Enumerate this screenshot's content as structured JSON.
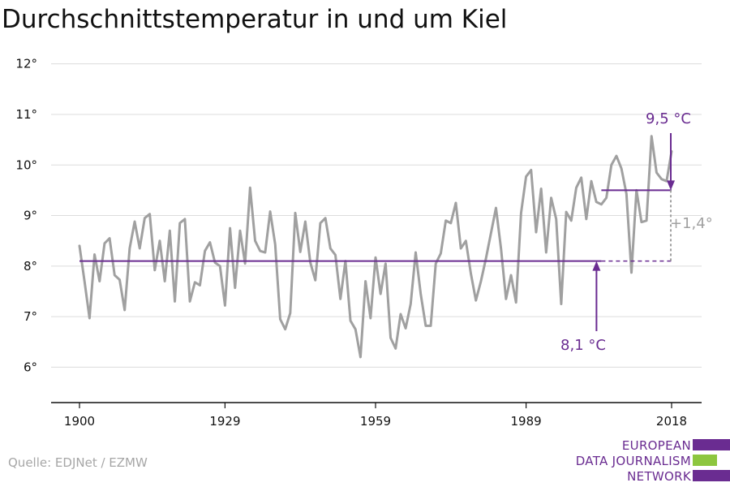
{
  "title": "Durchschnittstemperatur in und um Kiel",
  "source": "Quelle: EDJNet / EZMW",
  "logo": {
    "lines": [
      "EUROPEAN",
      "DATA JOURNALISM",
      "NETWORK"
    ],
    "colors": [
      "#6a2c91",
      "#8dc63f",
      "#6a2c91"
    ]
  },
  "colors": {
    "series": "#a0a0a0",
    "mean": "#6a2c91",
    "diff": "#a0a0a0"
  },
  "chart_data": {
    "type": "line",
    "title": "Durchschnittstemperatur in und um Kiel",
    "ylim": [
      5.3,
      12.3
    ],
    "xlim": [
      1900,
      2018
    ],
    "yticks": [
      6,
      7,
      8,
      9,
      10,
      11,
      12
    ],
    "ytick_labels": [
      "6°",
      "7°",
      "8°",
      "9°",
      "10°",
      "11°",
      "12°"
    ],
    "xticks": [
      1900,
      1929,
      1959,
      1989,
      2018
    ],
    "grid": true,
    "x": [
      1900,
      1901,
      1902,
      1903,
      1904,
      1905,
      1906,
      1907,
      1908,
      1909,
      1910,
      1911,
      1912,
      1913,
      1914,
      1915,
      1916,
      1917,
      1918,
      1919,
      1920,
      1921,
      1922,
      1923,
      1924,
      1925,
      1926,
      1927,
      1928,
      1929,
      1930,
      1931,
      1932,
      1933,
      1934,
      1935,
      1936,
      1937,
      1938,
      1939,
      1940,
      1941,
      1942,
      1943,
      1944,
      1945,
      1946,
      1947,
      1948,
      1949,
      1950,
      1951,
      1952,
      1953,
      1954,
      1955,
      1956,
      1957,
      1958,
      1959,
      1960,
      1961,
      1962,
      1963,
      1964,
      1965,
      1966,
      1967,
      1968,
      1969,
      1970,
      1971,
      1972,
      1973,
      1974,
      1975,
      1976,
      1977,
      1978,
      1979,
      1980,
      1981,
      1982,
      1983,
      1984,
      1985,
      1986,
      1987,
      1988,
      1989,
      1990,
      1991,
      1992,
      1993,
      1994,
      1995,
      1996,
      1997,
      1998,
      1999,
      2000,
      2001,
      2002,
      2003,
      2004,
      2005,
      2006,
      2007,
      2008,
      2009,
      2010,
      2011,
      2012,
      2013,
      2014,
      2015,
      2016,
      2017,
      2018
    ],
    "series": [
      {
        "values": [
          8.4,
          7.7,
          6.97,
          8.23,
          7.7,
          8.45,
          8.55,
          7.82,
          7.73,
          7.13,
          8.35,
          8.88,
          8.35,
          8.95,
          9.03,
          7.92,
          8.5,
          7.7,
          8.7,
          7.3,
          8.85,
          8.93,
          7.3,
          7.68,
          7.62,
          8.3,
          8.47,
          8.07,
          8.0,
          7.22,
          8.75,
          7.57,
          8.7,
          8.05,
          9.55,
          8.5,
          8.3,
          8.27,
          9.08,
          8.43,
          6.95,
          6.75,
          7.07,
          9.05,
          8.28,
          8.88,
          8.07,
          7.72,
          8.85,
          8.95,
          8.35,
          8.22,
          7.35,
          8.1,
          6.92,
          6.75,
          6.2,
          7.7,
          6.97,
          8.17,
          7.45,
          8.05,
          6.58,
          6.37,
          7.05,
          6.77,
          7.25,
          8.27,
          7.45,
          6.82,
          6.82,
          8.05,
          8.25,
          8.9,
          8.85,
          9.25,
          8.35,
          8.5,
          7.85,
          7.32,
          7.7,
          8.15,
          8.65,
          9.15,
          8.35,
          7.35,
          7.82,
          7.28,
          9.05,
          9.77,
          9.9,
          8.67,
          9.53,
          8.27,
          9.35,
          8.93,
          7.25,
          9.07,
          8.9,
          9.55,
          9.75,
          8.93,
          9.68,
          9.27,
          9.22,
          9.35,
          10.0,
          10.18,
          9.93,
          9.43,
          7.87,
          9.5,
          8.87,
          8.9,
          10.57,
          9.85,
          9.72,
          9.68,
          10.27
        ]
      }
    ],
    "reference_lines": [
      {
        "label": "8,1 °C",
        "value": 8.1,
        "from": 1900,
        "to": 2004,
        "dashed_to": 2018
      },
      {
        "label": "9,5 °C",
        "value": 9.5,
        "from": 2004,
        "to": 2018
      }
    ],
    "annotation_diff": "+1,4°"
  }
}
